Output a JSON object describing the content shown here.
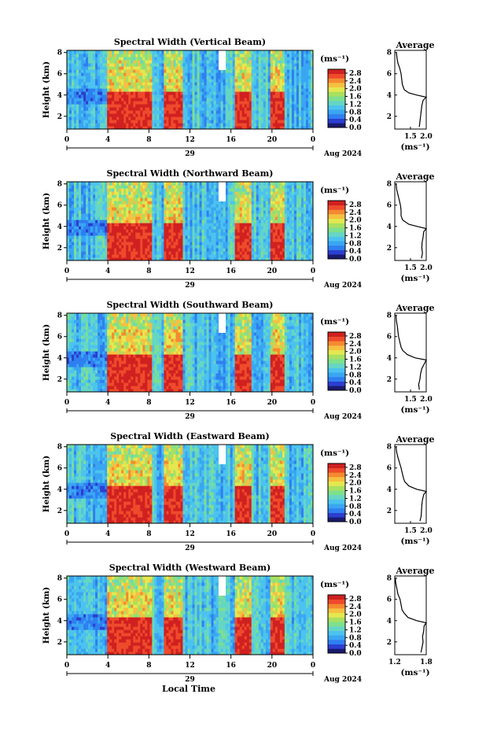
{
  "figure": {
    "x_axis_title": "Local Time",
    "date_label": "29",
    "month_year_label": "Aug 2024",
    "colorbar_unit": "(ms⁻¹)",
    "average_title": "Average",
    "average_unit": "(ms⁻¹)"
  },
  "colormap": [
    "#1a1a6e",
    "#2b3fd0",
    "#2f7ff0",
    "#3aa6f2",
    "#4cc3ee",
    "#66d6c4",
    "#7fe08c",
    "#a9e060",
    "#e4e850",
    "#f6c040",
    "#f48a30",
    "#ee4a2c",
    "#d02020"
  ],
  "chart_data": [
    {
      "type": "heatmap",
      "title": "Spectral Width (Vertical Beam)",
      "ylabel": "Height (km)",
      "y_ticks": [
        "2",
        "4",
        "6",
        "8"
      ],
      "ylim": [
        0.8,
        8.2
      ],
      "x_ticks": [
        "0",
        "4",
        "8",
        "12",
        "16",
        "20",
        "0"
      ],
      "xlim": [
        0,
        24
      ],
      "colorbar": {
        "ticks": [
          "0.0",
          "0.4",
          "0.8",
          "1.2",
          "1.6",
          "2.0",
          "2.4",
          "2.8"
        ],
        "range": [
          0.0,
          3.0
        ]
      },
      "high_width_periods_hours": [
        [
          4.0,
          7.5
        ],
        [
          7.5,
          8.2
        ],
        [
          9.5,
          11.3
        ],
        [
          16.3,
          18.0
        ],
        [
          19.9,
          21.2
        ]
      ],
      "average_profile": {
        "x_ticks": [
          "1.5",
          "2.0"
        ],
        "xlim": [
          1.0,
          2.0
        ],
        "y_ticks": [
          "2",
          "4",
          "6",
          "8"
        ],
        "ylim": [
          0.8,
          8.2
        ],
        "points": [
          [
            1.78,
            1.0
          ],
          [
            1.8,
            1.5
          ],
          [
            1.82,
            2.0
          ],
          [
            1.84,
            2.5
          ],
          [
            1.86,
            3.0
          ],
          [
            1.9,
            3.5
          ],
          [
            2.0,
            3.8
          ],
          [
            1.7,
            4.0
          ],
          [
            1.45,
            4.2
          ],
          [
            1.3,
            4.5
          ],
          [
            1.24,
            5.0
          ],
          [
            1.22,
            5.5
          ],
          [
            1.2,
            6.0
          ],
          [
            1.16,
            6.5
          ],
          [
            1.1,
            7.0
          ],
          [
            1.07,
            7.5
          ],
          [
            1.05,
            8.0
          ]
        ]
      }
    },
    {
      "type": "heatmap",
      "title": "Spectral Width (Northward Beam)",
      "ylabel": "Height (km)",
      "y_ticks": [
        "2",
        "4",
        "6",
        "8"
      ],
      "ylim": [
        0.8,
        8.2
      ],
      "x_ticks": [
        "0",
        "4",
        "8",
        "12",
        "16",
        "20",
        "0"
      ],
      "xlim": [
        0,
        24
      ],
      "colorbar": {
        "ticks": [
          "0.0",
          "0.4",
          "0.8",
          "1.2",
          "1.6",
          "2.0",
          "2.4",
          "2.8"
        ],
        "range": [
          0.0,
          3.0
        ]
      },
      "high_width_periods_hours": [
        [
          4.0,
          7.5
        ],
        [
          7.5,
          8.2
        ],
        [
          9.5,
          11.3
        ],
        [
          16.3,
          18.0
        ],
        [
          19.9,
          21.2
        ]
      ],
      "average_profile": {
        "x_ticks": [
          "1.5",
          "2.0"
        ],
        "xlim": [
          1.0,
          2.0
        ],
        "y_ticks": [
          "2",
          "4",
          "6",
          "8"
        ],
        "ylim": [
          0.8,
          8.2
        ],
        "points": [
          [
            1.85,
            1.0
          ],
          [
            1.88,
            1.5
          ],
          [
            1.86,
            2.0
          ],
          [
            1.87,
            2.5
          ],
          [
            1.9,
            3.0
          ],
          [
            1.92,
            3.5
          ],
          [
            2.0,
            3.8
          ],
          [
            1.72,
            4.0
          ],
          [
            1.45,
            4.2
          ],
          [
            1.25,
            4.6
          ],
          [
            1.2,
            5.0
          ],
          [
            1.2,
            5.5
          ],
          [
            1.18,
            6.0
          ],
          [
            1.14,
            6.5
          ],
          [
            1.1,
            7.0
          ],
          [
            1.06,
            7.5
          ],
          [
            1.04,
            8.0
          ]
        ]
      }
    },
    {
      "type": "heatmap",
      "title": "Spectral Width (Southward Beam)",
      "ylabel": "Height (km)",
      "y_ticks": [
        "2",
        "4",
        "6",
        "8"
      ],
      "ylim": [
        0.8,
        8.2
      ],
      "x_ticks": [
        "0",
        "4",
        "8",
        "12",
        "16",
        "20",
        "0"
      ],
      "xlim": [
        0,
        24
      ],
      "colorbar": {
        "ticks": [
          "0.0",
          "0.4",
          "0.8",
          "1.2",
          "1.6",
          "2.0",
          "2.4",
          "2.8"
        ],
        "range": [
          0.0,
          3.0
        ]
      },
      "high_width_periods_hours": [
        [
          4.0,
          7.5
        ],
        [
          7.5,
          8.2
        ],
        [
          9.5,
          11.3
        ],
        [
          16.3,
          18.0
        ],
        [
          19.9,
          21.2
        ]
      ],
      "average_profile": {
        "x_ticks": [
          "1.5",
          "2.0"
        ],
        "xlim": [
          1.0,
          2.0
        ],
        "y_ticks": [
          "2",
          "4",
          "6",
          "8"
        ],
        "ylim": [
          0.8,
          8.2
        ],
        "points": [
          [
            1.78,
            1.0
          ],
          [
            1.76,
            1.5
          ],
          [
            1.8,
            2.0
          ],
          [
            1.82,
            2.5
          ],
          [
            1.86,
            3.0
          ],
          [
            1.95,
            3.5
          ],
          [
            2.0,
            3.8
          ],
          [
            1.65,
            4.0
          ],
          [
            1.4,
            4.3
          ],
          [
            1.25,
            4.7
          ],
          [
            1.2,
            5.0
          ],
          [
            1.16,
            5.5
          ],
          [
            1.12,
            6.0
          ],
          [
            1.1,
            6.5
          ],
          [
            1.08,
            7.0
          ],
          [
            1.05,
            7.5
          ],
          [
            1.04,
            8.0
          ]
        ]
      }
    },
    {
      "type": "heatmap",
      "title": "Spectral Width (Eastward Beam)",
      "ylabel": "Height (km)",
      "y_ticks": [
        "2",
        "4",
        "6",
        "8"
      ],
      "ylim": [
        0.8,
        8.2
      ],
      "x_ticks": [
        "0",
        "4",
        "8",
        "12",
        "16",
        "20",
        "0"
      ],
      "xlim": [
        0,
        24
      ],
      "colorbar": {
        "ticks": [
          "0.0",
          "0.4",
          "0.8",
          "1.2",
          "1.6",
          "2.0",
          "2.4",
          "2.8"
        ],
        "range": [
          0.0,
          3.0
        ]
      },
      "high_width_periods_hours": [
        [
          4.0,
          7.5
        ],
        [
          7.5,
          8.2
        ],
        [
          9.5,
          11.3
        ],
        [
          16.3,
          18.0
        ],
        [
          19.9,
          21.2
        ]
      ],
      "average_profile": {
        "x_ticks": [
          "1.5",
          "2.0"
        ],
        "xlim": [
          1.0,
          2.0
        ],
        "y_ticks": [
          "2",
          "4",
          "6",
          "8"
        ],
        "ylim": [
          0.8,
          8.2
        ],
        "points": [
          [
            1.8,
            1.0
          ],
          [
            1.84,
            1.5
          ],
          [
            1.85,
            2.0
          ],
          [
            1.86,
            2.5
          ],
          [
            1.88,
            3.0
          ],
          [
            1.92,
            3.5
          ],
          [
            2.0,
            3.8
          ],
          [
            1.7,
            4.0
          ],
          [
            1.45,
            4.3
          ],
          [
            1.32,
            4.7
          ],
          [
            1.28,
            5.0
          ],
          [
            1.24,
            5.5
          ],
          [
            1.2,
            6.0
          ],
          [
            1.15,
            6.5
          ],
          [
            1.1,
            7.0
          ],
          [
            1.06,
            7.5
          ],
          [
            1.04,
            8.0
          ]
        ]
      }
    },
    {
      "type": "heatmap",
      "title": "Spectral Width (Westward Beam)",
      "ylabel": "Height (km)",
      "y_ticks": [
        "2",
        "4",
        "6",
        "8"
      ],
      "ylim": [
        0.8,
        8.2
      ],
      "x_ticks": [
        "0",
        "4",
        "8",
        "12",
        "16",
        "20",
        "0"
      ],
      "xlim": [
        0,
        24
      ],
      "colorbar": {
        "ticks": [
          "0.0",
          "0.4",
          "0.8",
          "1.2",
          "1.6",
          "2.0",
          "2.4",
          "2.8"
        ],
        "range": [
          0.0,
          3.0
        ]
      },
      "high_width_periods_hours": [
        [
          4.0,
          7.5
        ],
        [
          7.5,
          8.2
        ],
        [
          9.5,
          11.3
        ],
        [
          16.3,
          18.0
        ],
        [
          19.9,
          21.2
        ]
      ],
      "average_profile": {
        "x_ticks": [
          "1.2",
          "1.8"
        ],
        "xlim": [
          1.2,
          1.8
        ],
        "y_ticks": [
          "2",
          "4",
          "6",
          "8"
        ],
        "ylim": [
          0.8,
          8.2
        ],
        "points": [
          [
            1.7,
            1.0
          ],
          [
            1.72,
            1.5
          ],
          [
            1.74,
            2.0
          ],
          [
            1.73,
            2.5
          ],
          [
            1.75,
            3.0
          ],
          [
            1.76,
            3.5
          ],
          [
            1.8,
            3.8
          ],
          [
            1.62,
            4.0
          ],
          [
            1.45,
            4.3
          ],
          [
            1.38,
            4.7
          ],
          [
            1.34,
            5.0
          ],
          [
            1.32,
            5.5
          ],
          [
            1.3,
            6.0
          ],
          [
            1.26,
            6.5
          ],
          [
            1.24,
            7.0
          ],
          [
            1.22,
            7.5
          ],
          [
            1.21,
            8.0
          ]
        ]
      }
    }
  ]
}
